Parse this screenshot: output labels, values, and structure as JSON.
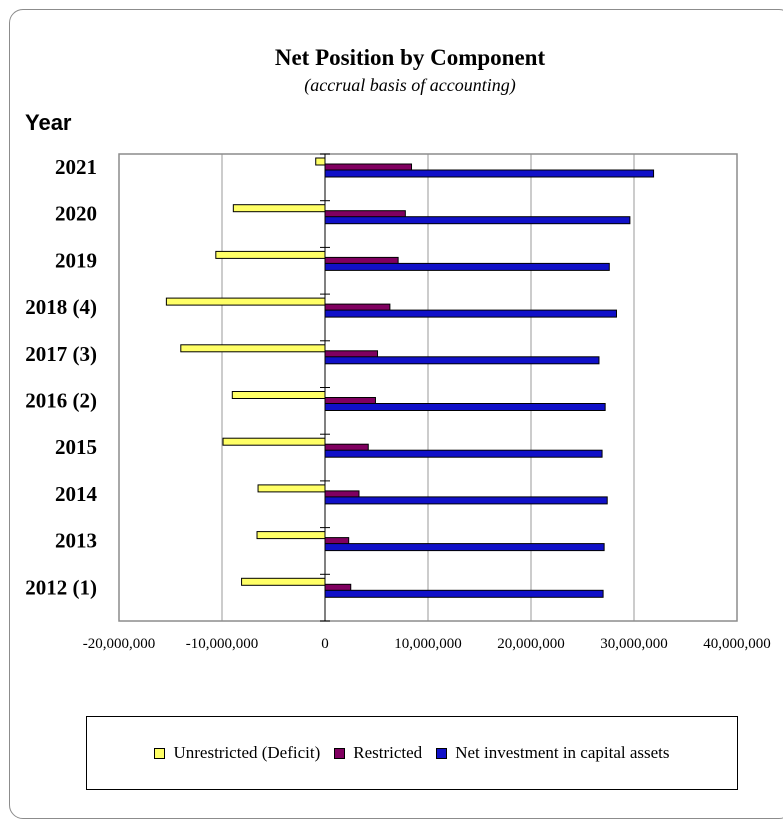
{
  "chart_data": {
    "type": "bar",
    "orientation": "horizontal",
    "title": "Net Position by Component",
    "subtitle": "(accrual basis of accounting)",
    "ylabel": "Year",
    "xlabel": "",
    "categories": [
      "2021",
      "2020",
      "2019",
      "2018 (4)",
      "2017 (3)",
      "2016 (2)",
      "2015",
      "2014",
      "2013",
      "2012 (1)"
    ],
    "xlim": [
      -20000000,
      40000000
    ],
    "xticks": [
      -20000000,
      -10000000,
      0,
      10000000,
      20000000,
      30000000,
      40000000
    ],
    "xtick_labels": [
      "-20,000,000",
      "-10,000,000",
      "0",
      "10,000,000",
      "20,000,000",
      "30,000,000",
      "40,000,000"
    ],
    "grid": true,
    "legend_position": "bottom",
    "series": [
      {
        "name": "Unrestricted (Deficit)",
        "color": "#ffff66",
        "values": [
          -900000,
          -8900000,
          -10600000,
          -15400000,
          -14000000,
          -9000000,
          -9900000,
          -6500000,
          -6600000,
          -8100000
        ]
      },
      {
        "name": "Restricted",
        "color": "#800060",
        "values": [
          8400000,
          7800000,
          7100000,
          6300000,
          5100000,
          4900000,
          4200000,
          3300000,
          2300000,
          2500000
        ]
      },
      {
        "name": "Net investment in capital assets",
        "color": "#1010c8",
        "values": [
          31900000,
          29600000,
          27600000,
          28300000,
          26600000,
          27200000,
          26900000,
          27400000,
          27100000,
          27000000
        ]
      }
    ]
  },
  "legend": {
    "unrestricted": "Unrestricted (Deficit)",
    "restricted": "Restricted",
    "net_investment": "Net investment in capital assets"
  }
}
